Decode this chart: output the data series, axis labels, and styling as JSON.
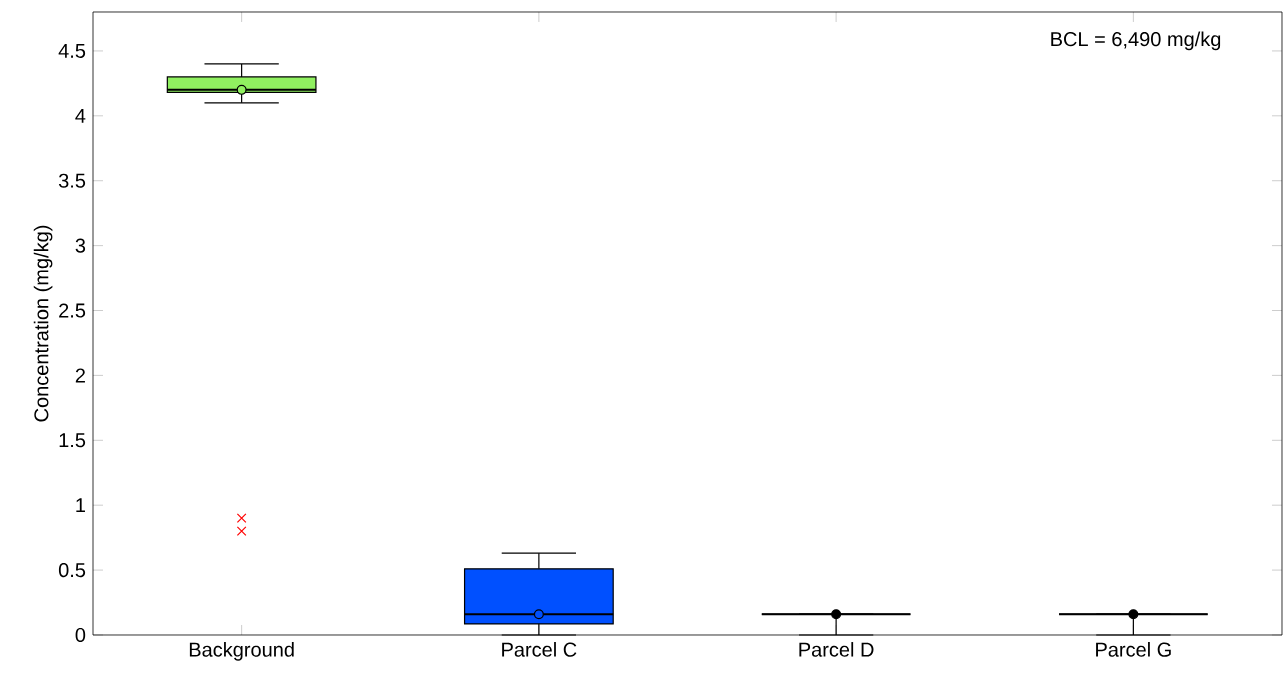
{
  "chart_data": {
    "type": "box",
    "ylabel": "Concentration (mg/kg)",
    "categories": [
      "Background",
      "Parcel C",
      "Parcel D",
      "Parcel G"
    ],
    "colors": [
      "#90f060",
      "#0050ff",
      "#000000",
      "#000000"
    ],
    "boxes": [
      {
        "low": 4.1,
        "q1": 4.18,
        "median": 4.2,
        "q3": 4.3,
        "high": 4.4,
        "mean": 4.2,
        "outliers": [
          0.9,
          0.8
        ]
      },
      {
        "low": 0,
        "q1": 0.085,
        "median": 0.16,
        "q3": 0.51,
        "high": 0.63,
        "mean": 0.16
      },
      {
        "low": 0,
        "q1": 0.16,
        "median": 0.16,
        "q3": 0.16,
        "high": 0.16,
        "mean": 0.16
      },
      {
        "low": 0,
        "q1": 0.16,
        "median": 0.16,
        "q3": 0.16,
        "high": 0.16,
        "mean": 0.16
      }
    ],
    "ylim": [
      0,
      4.8
    ],
    "yticks": [
      0,
      0.5,
      1,
      1.5,
      2,
      2.5,
      3,
      3.5,
      4,
      4.5
    ],
    "annotations": [
      "BCL = 6,490 mg/kg"
    ],
    "grid": false
  }
}
